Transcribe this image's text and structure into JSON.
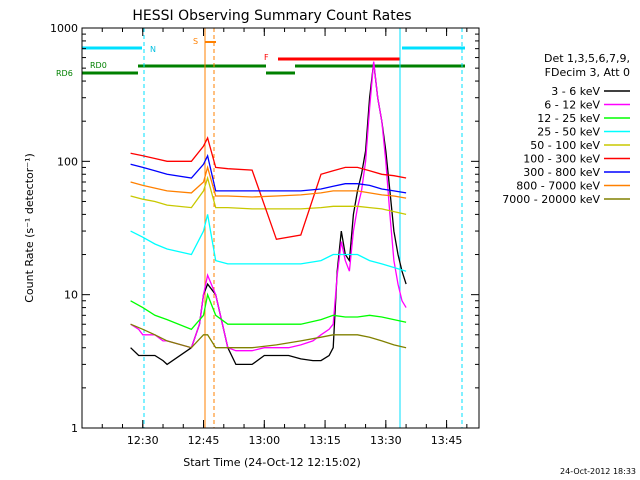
{
  "chart_data": {
    "type": "line",
    "title": "HESSI Observing Summary Count Rates",
    "xlabel": "Start Time (24-Oct-12 12:15:02)",
    "ylabel": "Count Rate (s⁻¹ detector⁻¹)",
    "x_ticks": [
      "12:30",
      "12:45",
      "13:00",
      "13:15",
      "13:30",
      "13:45"
    ],
    "y_ticks": [
      "1",
      "10",
      "100",
      "1000"
    ],
    "y_scale": "log",
    "ylim": [
      1,
      1000
    ],
    "xlim_minutes_after_start": [
      0,
      98
    ],
    "x_tick_minutes": [
      15,
      30,
      45,
      60,
      75,
      90
    ],
    "legend_header": [
      "Det 1,3,5,6,7,9,",
      "FDecim 3, Att 0"
    ],
    "series": [
      {
        "name": "3 - 6 keV",
        "color": "#000000",
        "x": [
          12,
          14,
          15,
          18,
          20,
          21,
          27,
          29,
          30,
          31,
          33,
          36,
          38,
          42,
          45,
          48,
          51,
          54,
          57,
          59,
          61,
          62,
          63,
          64,
          65,
          66,
          67,
          68,
          69,
          70,
          71,
          72,
          73,
          74,
          75,
          76,
          77,
          78,
          79,
          80
        ],
        "y": [
          4,
          3.5,
          3.5,
          3.5,
          3.2,
          3,
          4,
          6,
          10,
          12,
          10,
          4,
          3,
          3,
          3.5,
          3.5,
          3.5,
          3.3,
          3.2,
          3.2,
          3.5,
          4,
          15,
          30,
          20,
          18,
          40,
          60,
          80,
          120,
          300,
          550,
          300,
          200,
          120,
          60,
          30,
          20,
          15,
          12
        ]
      },
      {
        "name": "6 - 12 keV",
        "color": "#ff00ff",
        "x": [
          12,
          14,
          15,
          18,
          20,
          21,
          27,
          29,
          30,
          31,
          33,
          36,
          38,
          42,
          45,
          48,
          51,
          54,
          57,
          59,
          61,
          62,
          63,
          64,
          65,
          66,
          67,
          68,
          69,
          70,
          71,
          72,
          73,
          74,
          75,
          76,
          77,
          78,
          79,
          80
        ],
        "y": [
          6,
          5.5,
          5,
          5,
          4.5,
          4.5,
          4,
          6,
          10,
          14,
          10,
          4,
          3.8,
          3.8,
          4,
          4,
          4,
          4.2,
          4.5,
          5,
          5.5,
          6,
          14,
          25,
          18,
          15,
          30,
          45,
          60,
          100,
          250,
          560,
          300,
          200,
          100,
          40,
          18,
          12,
          9,
          8
        ]
      },
      {
        "name": "12 - 25 keV",
        "color": "#00ff00",
        "x": [
          12,
          15,
          18,
          21,
          27,
          30,
          31,
          33,
          36,
          42,
          48,
          54,
          59,
          62,
          65,
          68,
          71,
          74,
          77,
          80
        ],
        "y": [
          9,
          8,
          7,
          6.5,
          5.5,
          7,
          10,
          7,
          6,
          6,
          6,
          6,
          6.5,
          7,
          6.8,
          6.8,
          7,
          6.8,
          6.5,
          6.2
        ]
      },
      {
        "name": "25 - 50 keV",
        "color": "#00ffff",
        "x": [
          12,
          15,
          18,
          21,
          27,
          30,
          31,
          33,
          36,
          42,
          48,
          54,
          59,
          62,
          65,
          68,
          71,
          74,
          77,
          80
        ],
        "y": [
          30,
          27,
          24,
          22,
          20,
          30,
          40,
          18,
          17,
          17,
          17,
          17,
          18,
          20,
          20,
          20,
          18,
          17,
          16,
          15
        ]
      },
      {
        "name": "50 - 100 keV",
        "color": "#c8c800",
        "x": [
          12,
          15,
          18,
          21,
          27,
          30,
          31,
          33,
          36,
          42,
          48,
          54,
          59,
          62,
          65,
          68,
          71,
          74,
          77,
          80
        ],
        "y": [
          55,
          52,
          50,
          47,
          45,
          60,
          75,
          45,
          45,
          44,
          44,
          44,
          45,
          46,
          46,
          46,
          45,
          44,
          42,
          40
        ]
      },
      {
        "name": "100 - 300 keV",
        "color": "#ff0000",
        "x": [
          12,
          15,
          18,
          21,
          27,
          30,
          31,
          33,
          36,
          42,
          48,
          54,
          59,
          62,
          65,
          68,
          71,
          74,
          77,
          80
        ],
        "y": [
          115,
          110,
          105,
          100,
          100,
          130,
          150,
          90,
          88,
          86,
          26,
          28,
          80,
          85,
          90,
          90,
          85,
          80,
          78,
          75
        ]
      },
      {
        "name": "300 - 800 keV",
        "color": "#0000ff",
        "x": [
          12,
          15,
          18,
          21,
          27,
          30,
          31,
          33,
          36,
          42,
          48,
          54,
          59,
          62,
          65,
          68,
          71,
          74,
          77,
          80
        ],
        "y": [
          95,
          90,
          85,
          80,
          75,
          95,
          110,
          60,
          60,
          60,
          60,
          60,
          62,
          65,
          68,
          68,
          66,
          62,
          60,
          58
        ]
      },
      {
        "name": "800 - 7000 keV",
        "color": "#ff8000",
        "x": [
          12,
          15,
          18,
          21,
          27,
          30,
          31,
          33,
          36,
          42,
          48,
          54,
          59,
          62,
          65,
          68,
          71,
          74,
          77,
          80
        ],
        "y": [
          70,
          66,
          63,
          60,
          58,
          70,
          90,
          55,
          55,
          54,
          55,
          56,
          58,
          60,
          60,
          60,
          58,
          56,
          55,
          53
        ]
      },
      {
        "name": "7000 - 20000 keV",
        "color": "#808000",
        "x": [
          12,
          15,
          18,
          21,
          27,
          30,
          31,
          33,
          36,
          42,
          48,
          54,
          59,
          62,
          65,
          68,
          71,
          74,
          77,
          80
        ],
        "y": [
          6,
          5.5,
          5,
          4.5,
          4,
          5,
          5,
          4,
          4,
          4,
          4.2,
          4.5,
          4.8,
          5,
          5,
          5,
          4.8,
          4.5,
          4.2,
          4
        ]
      }
    ],
    "flag_labels": [
      "N",
      "S",
      "F",
      "RD0",
      "RD6"
    ],
    "timestamp": "24-Oct-2012 18:33"
  }
}
